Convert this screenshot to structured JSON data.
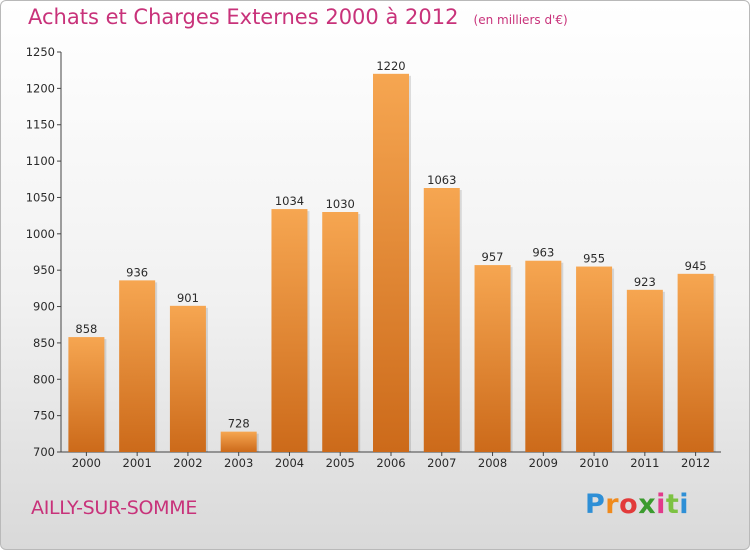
{
  "chart_data": {
    "type": "bar",
    "title": "Achats et Charges Externes 2000 à 2012",
    "unit_label": "(en milliers d'€)",
    "categories": [
      "2000",
      "2001",
      "2002",
      "2003",
      "2004",
      "2005",
      "2006",
      "2007",
      "2008",
      "2009",
      "2010",
      "2011",
      "2012"
    ],
    "values": [
      858,
      936,
      901,
      728,
      1034,
      1030,
      1220,
      1063,
      957,
      963,
      955,
      923,
      945
    ],
    "ylim": [
      700,
      1250
    ],
    "yticks": [
      700,
      750,
      800,
      850,
      900,
      950,
      1000,
      1050,
      1100,
      1150,
      1200,
      1250
    ],
    "grid": false,
    "bar_color_light": "#f5a04d",
    "bar_color_dark": "#cf6e1c",
    "title_color": "#c8327a"
  },
  "footer": {
    "commune": "AILLY-SUR-SOMME",
    "logo_letters": [
      "P",
      "r",
      "o",
      "x",
      "i",
      "t",
      "i"
    ]
  }
}
